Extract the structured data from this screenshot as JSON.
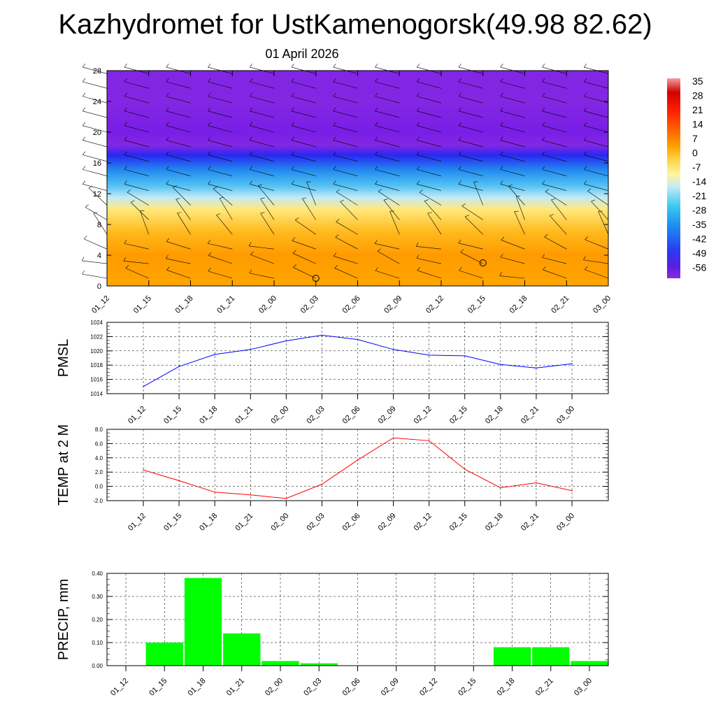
{
  "title": "Kazhydromet for UstKamenogorsk(49.98 82.62)",
  "date": "01 April 2026",
  "time_labels": [
    "01_12",
    "01_15",
    "01_18",
    "01_21",
    "02_00",
    "02_03",
    "02_06",
    "02_09",
    "02_12",
    "02_15",
    "02_18",
    "02_21",
    "03_00"
  ],
  "colors": {
    "pmsl_line": "#0000ff",
    "temp_line": "#ff0000",
    "precip_bar": "#00ff00",
    "grid": "#000000"
  },
  "chart_data": [
    {
      "type": "heatmap",
      "name": "vertical-cross-section",
      "xlabel": "",
      "ylabel": "",
      "ylim": [
        0,
        28
      ],
      "yticks": [
        0,
        4,
        8,
        12,
        16,
        20,
        24,
        28
      ],
      "colorbar_labels": [
        "35",
        "28",
        "21",
        "14",
        "7",
        "0",
        "-7",
        "-14",
        "-21",
        "-28",
        "-35",
        "-42",
        "-49",
        "-56"
      ],
      "level_profile": [
        {
          "level": 0,
          "value": 2
        },
        {
          "level": 4,
          "value": 3
        },
        {
          "level": 7,
          "value": 0
        },
        {
          "level": 10,
          "value": -6
        },
        {
          "level": 11.5,
          "value": -13
        },
        {
          "level": 13,
          "value": -20
        },
        {
          "level": 15,
          "value": -30
        },
        {
          "level": 17,
          "value": -45
        },
        {
          "level": 18.3,
          "value": -56
        },
        {
          "level": 20,
          "value": -52
        },
        {
          "level": 24,
          "value": -56
        },
        {
          "level": 28,
          "value": -55
        }
      ],
      "station_markers": [
        "02_03",
        "02_15"
      ]
    },
    {
      "type": "line",
      "name": "pmsl",
      "ylabel": "PMSL",
      "ylim": [
        1014,
        1024
      ],
      "yticks": [
        "1014",
        "1016",
        "1018",
        "1020",
        "1022",
        "1024"
      ],
      "x": [
        "01_12",
        "01_15",
        "01_18",
        "01_21",
        "02_00",
        "02_03",
        "02_06",
        "02_09",
        "02_12",
        "02_15",
        "02_18",
        "02_21",
        "03_00"
      ],
      "values": [
        1015.0,
        1017.8,
        1019.5,
        1020.2,
        1021.4,
        1022.2,
        1021.6,
        1020.2,
        1019.4,
        1019.3,
        1018.1,
        1017.6,
        1018.2
      ]
    },
    {
      "type": "line",
      "name": "temp-2m",
      "ylabel": "TEMP at 2 M",
      "ylim": [
        -2.0,
        8.0
      ],
      "yticks": [
        "-2.0",
        "0.0",
        "2.0",
        "4.0",
        "6.0",
        "8.0"
      ],
      "x": [
        "01_12",
        "01_15",
        "01_18",
        "01_21",
        "02_00",
        "02_03",
        "02_06",
        "02_09",
        "02_12",
        "02_15",
        "02_18",
        "02_21",
        "03_00"
      ],
      "values": [
        2.3,
        0.8,
        -0.8,
        -1.2,
        -1.7,
        0.3,
        3.7,
        6.8,
        6.4,
        2.4,
        -0.2,
        0.5,
        -0.6
      ]
    },
    {
      "type": "bar",
      "name": "precip",
      "ylabel": "PRECIP, mm",
      "ylim": [
        0.0,
        0.4
      ],
      "yticks": [
        "0.00",
        "0.10",
        "0.20",
        "0.30",
        "0.40"
      ],
      "categories": [
        "01_12",
        "01_15",
        "01_18",
        "01_21",
        "02_00",
        "02_03",
        "02_06",
        "02_09",
        "02_12",
        "02_15",
        "02_18",
        "02_21",
        "03_00"
      ],
      "values": [
        0.0,
        0.1,
        0.38,
        0.14,
        0.02,
        0.01,
        0.0,
        0.0,
        0.0,
        0.0,
        0.08,
        0.08,
        0.02
      ]
    }
  ]
}
